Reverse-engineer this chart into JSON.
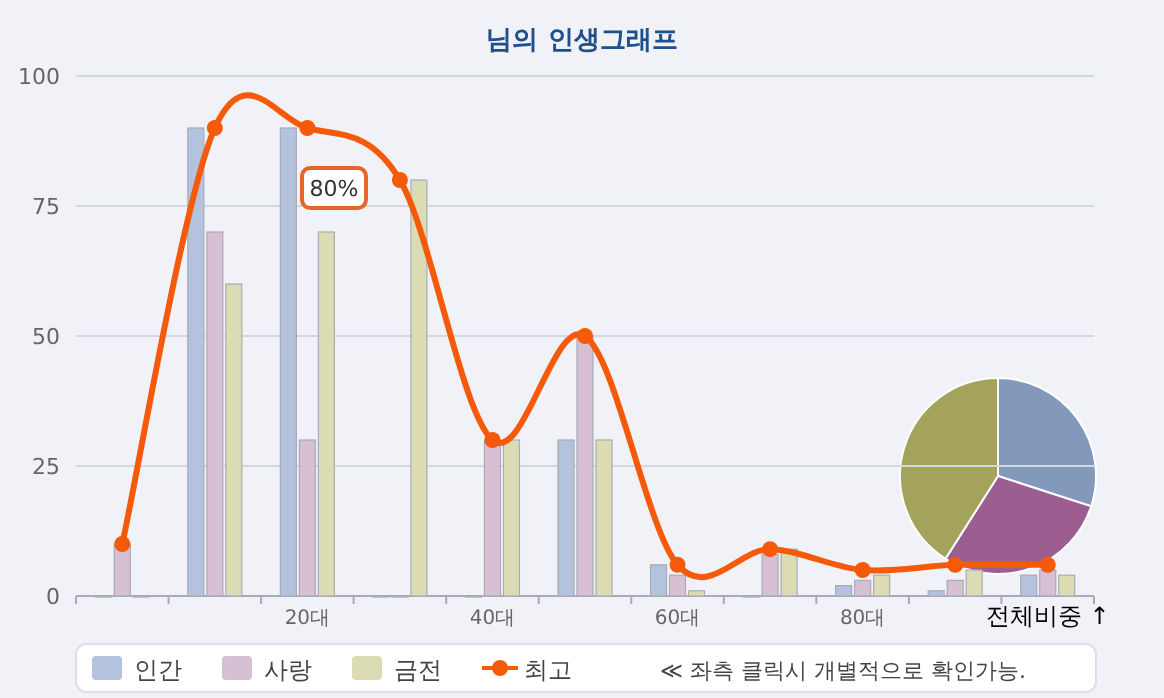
{
  "chart_data": [
    {
      "type": "bar",
      "title": "님의 인생그래프",
      "categories": [
        null,
        null,
        "20대",
        null,
        "40대",
        null,
        "60대",
        null,
        "80대",
        null,
        "전체비중 ↑"
      ],
      "series": [
        {
          "name": "인간",
          "color": "#b3c2dd",
          "values": [
            0,
            90,
            90,
            0,
            0,
            30,
            6,
            0,
            2,
            1,
            4
          ]
        },
        {
          "name": "사랑",
          "color": "#d7c0d4",
          "values": [
            10,
            70,
            30,
            0,
            30,
            50,
            4,
            8,
            3,
            3,
            5
          ]
        },
        {
          "name": "금전",
          "color": "#dcdcb4",
          "values": [
            0,
            60,
            70,
            80,
            30,
            30,
            1,
            9,
            4,
            5,
            4
          ]
        },
        {
          "name": "최고",
          "type": "line",
          "color": "#f55a0a",
          "values": [
            10,
            90,
            90,
            80,
            30,
            50,
            6,
            9,
            5,
            6,
            6
          ]
        }
      ],
      "ylim": [
        0,
        100
      ],
      "yticks": [
        0,
        25,
        50,
        75,
        100
      ],
      "grid": "y",
      "legend": "bottom",
      "marker": "circle",
      "annotations": [
        "80%",
        "≪ 좌측 클릭시 개별적으로 확인가능."
      ]
    },
    {
      "type": "pie",
      "categories": [
        null,
        null,
        null
      ],
      "values": [
        30,
        29,
        41
      ],
      "colors": [
        "#8299bb",
        "#9c5e91",
        "#a4a35c"
      ]
    }
  ]
}
